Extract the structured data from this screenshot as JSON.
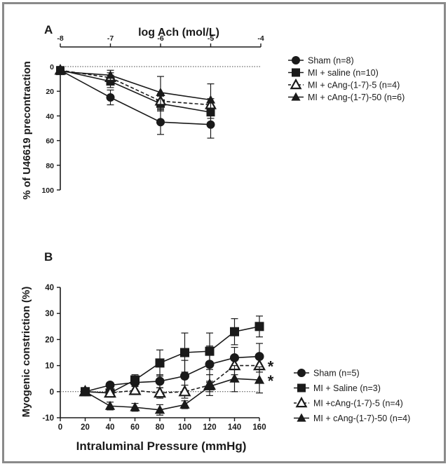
{
  "chart_data": [
    {
      "panel_label": "A",
      "type": "line",
      "title": "",
      "xlabel": "log Ach (mol/L)",
      "ylabel": "% of U46619 precontraction",
      "x": [
        -8,
        -7,
        -6,
        -5
      ],
      "xlim": [
        -8,
        -4
      ],
      "xticks": [
        -8,
        -7,
        -6,
        -5,
        -4
      ],
      "ylim": [
        0,
        100
      ],
      "yticks": [
        0,
        20,
        40,
        60,
        80,
        100
      ],
      "y_inverted": true,
      "x_axis_position": "top",
      "reference_line_y": 0,
      "legend_position": "right",
      "series": [
        {
          "name": "Sham (n=8)",
          "marker": "circle",
          "line": "solid",
          "values": [
            3,
            25,
            45,
            47
          ],
          "error": [
            2,
            6,
            10,
            11
          ]
        },
        {
          "name": "MI + saline (n=10)",
          "marker": "square",
          "line": "solid",
          "values": [
            3,
            12,
            30,
            37
          ],
          "error": [
            2,
            5,
            6,
            5
          ]
        },
        {
          "name": "MI + cAng-(1-7)-5 (n=4)",
          "marker": "triangle-open",
          "line": "dashed",
          "values": [
            3,
            9,
            28,
            31
          ],
          "error": [
            2,
            4,
            6,
            5
          ]
        },
        {
          "name": "MI + cAng-(1-7)-50 (n=6)",
          "marker": "triangle-filled",
          "line": "solid",
          "values": [
            4,
            7,
            21,
            27
          ],
          "error": [
            2,
            4,
            13,
            13
          ]
        }
      ]
    },
    {
      "panel_label": "B",
      "type": "line",
      "title": "",
      "xlabel": "Intraluminal Pressure (mmHg)",
      "ylabel": "Myogenic constriction (%)",
      "x": [
        20,
        40,
        60,
        80,
        100,
        120,
        140,
        160
      ],
      "xlim": [
        0,
        160
      ],
      "xticks": [
        0,
        20,
        40,
        60,
        80,
        100,
        120,
        140,
        160
      ],
      "ylim": [
        -10,
        40
      ],
      "yticks": [
        -10,
        0,
        10,
        20,
        30,
        40
      ],
      "reference_line_y": 0,
      "legend_position": "right",
      "significance_marks": [
        {
          "text": "*",
          "series_index": 2
        },
        {
          "text": "*",
          "series_index": 3
        }
      ],
      "series": [
        {
          "name": "Sham (n=5)",
          "marker": "circle",
          "line": "solid",
          "values": [
            0,
            2.5,
            3.5,
            4,
            6,
            10.5,
            13,
            13.5
          ],
          "error": [
            0,
            1,
            1.5,
            2.5,
            6,
            7,
            4,
            5
          ]
        },
        {
          "name": "MI + Saline (n=3)",
          "marker": "square",
          "line": "solid",
          "values": [
            0,
            -0.5,
            4.5,
            11,
            15,
            15.5,
            23,
            25
          ],
          "error": [
            0,
            1,
            2,
            5,
            7.5,
            7,
            5,
            4
          ]
        },
        {
          "name": "MI +cAng-(1-7)-5 (n=4)",
          "marker": "triangle-open",
          "line": "dashed",
          "values": [
            0,
            -0.5,
            0.5,
            -0.5,
            0,
            2.5,
            10,
            10
          ],
          "error": [
            0,
            1,
            1.5,
            2,
            2.5,
            4,
            3.5,
            2.5
          ]
        },
        {
          "name": "MI + cAng-(1-7)-50 (n=4)",
          "marker": "triangle-filled",
          "line": "solid",
          "values": [
            0,
            -5.5,
            -6,
            -7,
            -5,
            2,
            5,
            4.5
          ],
          "error": [
            0,
            1.5,
            1.5,
            2,
            1.5,
            2,
            5,
            5
          ]
        }
      ]
    }
  ]
}
